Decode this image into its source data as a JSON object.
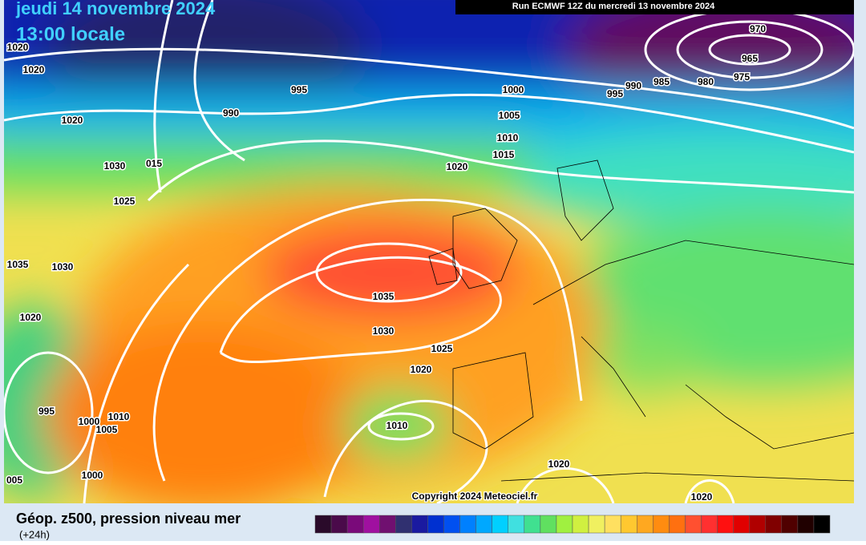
{
  "header": {
    "date": "jeudi 14 novembre 2024",
    "time": "13:00 locale",
    "run": "Run ECMWF 12Z du mercredi 13 novembre 2024"
  },
  "isobar_labels": [
    "970",
    "965",
    "975",
    "980",
    "985",
    "990",
    "995",
    "1000",
    "1005",
    "1010",
    "1015",
    "1020",
    "995",
    "990",
    "1020",
    "1020",
    "1020",
    "1030",
    "015",
    "1025",
    "1035",
    "1030",
    "1020",
    "1035",
    "1030",
    "1025",
    "1020",
    "995",
    "1000",
    "1010",
    "1005",
    "1010",
    "1020",
    "1020",
    "005",
    "1000"
  ],
  "copyright": "Copyright 2024 Meteociel.fr",
  "legend": {
    "title": "Géop. z500, pression niveau mer",
    "subtitle": "(+24h)",
    "colors": [
      "#2a0a2a",
      "#4a0a4a",
      "#7a0a7a",
      "#a010a0",
      "#701070",
      "#303070",
      "#1a1aa0",
      "#0030d0",
      "#0050f0",
      "#0080ff",
      "#00a8ff",
      "#00d0ff",
      "#40e0e0",
      "#40e090",
      "#60e060",
      "#a0f040",
      "#d0f040",
      "#f0f060",
      "#ffe060",
      "#ffc830",
      "#ffa820",
      "#ff8c10",
      "#ff7010",
      "#ff5030",
      "#ff3030",
      "#ff1010",
      "#e00000",
      "#b00000",
      "#800000",
      "#500000",
      "#200000",
      "#000000"
    ]
  }
}
